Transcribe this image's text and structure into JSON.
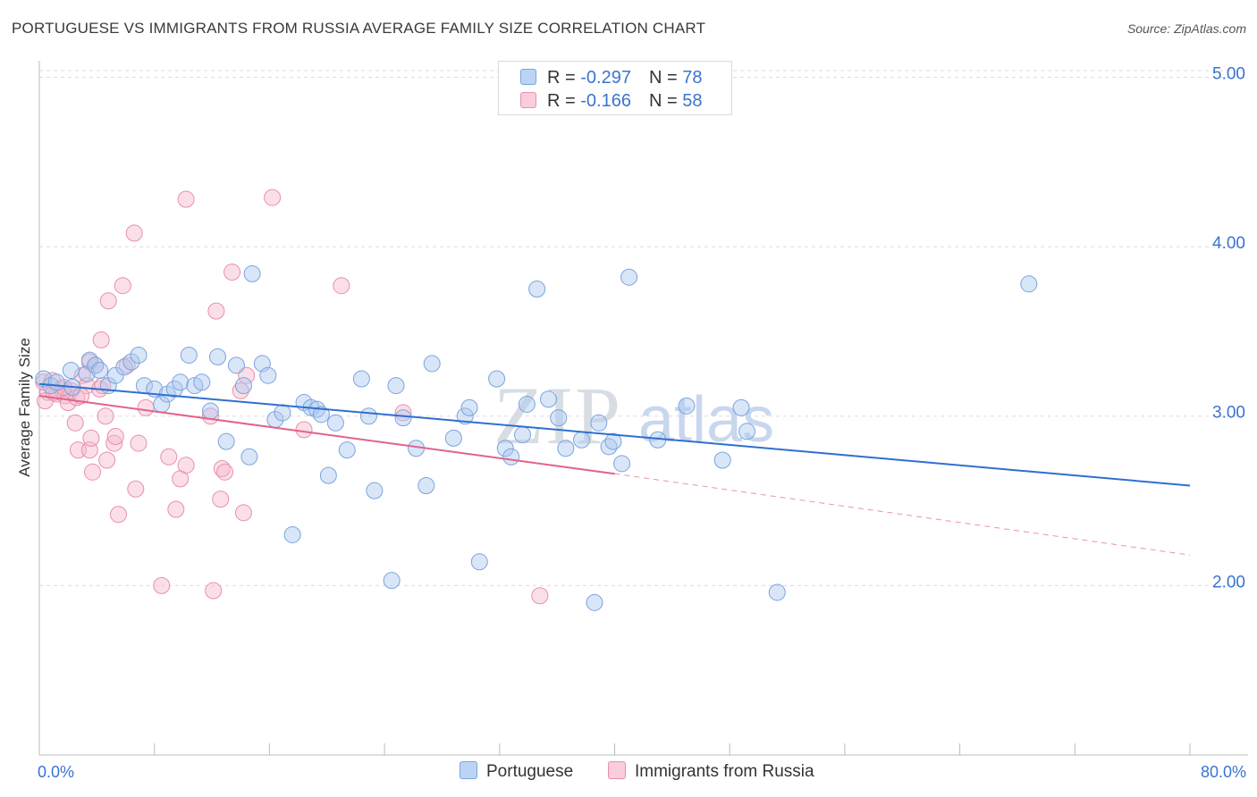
{
  "header": {
    "title": "PORTUGUESE VS IMMIGRANTS FROM RUSSIA AVERAGE FAMILY SIZE CORRELATION CHART",
    "source": "Source: ZipAtlas.com"
  },
  "watermark": {
    "part1": "ZIP",
    "part2": "atlas"
  },
  "legend_top": {
    "rows": [
      {
        "r_label": "R = ",
        "r_value": "-0.297",
        "n_label": "N = ",
        "n_value": "78"
      },
      {
        "r_label": "R = ",
        "r_value": "-0.166",
        "n_label": "N = ",
        "n_value": "58"
      }
    ]
  },
  "legend_bottom": {
    "items": [
      "Portuguese",
      "Immigrants from Russia"
    ]
  },
  "colors": {
    "portuguese_fill": "#aac8f0",
    "portuguese_stroke": "#7aa4dc",
    "portuguese_line": "#2f6fd0",
    "russia_fill": "#f6b8cc",
    "russia_stroke": "#e890ac",
    "russia_line": "#e0648c",
    "tick_label": "#3a74d0",
    "grid": "#dcdcdc"
  },
  "chart_data": {
    "type": "scatter",
    "title": "PORTUGUESE VS IMMIGRANTS FROM RUSSIA AVERAGE FAMILY SIZE CORRELATION CHART",
    "xlabel": "",
    "ylabel": "Average Family Size",
    "xlim": [
      0,
      80
    ],
    "ylim": [
      1.0,
      5.15
    ],
    "x_tick_labels": [
      "0.0%",
      "80.0%"
    ],
    "y_ticks": [
      2.0,
      3.0,
      4.0,
      5.0
    ],
    "y_tick_labels": [
      "2.00",
      "3.00",
      "4.00",
      "5.00"
    ],
    "grid": true,
    "legend_position": "bottom",
    "series": [
      {
        "name": "Portuguese",
        "r": -0.297,
        "n": 78,
        "trend": {
          "x": [
            0,
            80
          ],
          "y": [
            3.19,
            2.59
          ]
        },
        "points": [
          [
            0.3,
            3.22
          ],
          [
            0.8,
            3.18
          ],
          [
            1.2,
            3.2
          ],
          [
            2.2,
            3.27
          ],
          [
            3.3,
            3.25
          ],
          [
            3.5,
            3.33
          ],
          [
            3.9,
            3.3
          ],
          [
            4.2,
            3.27
          ],
          [
            4.8,
            3.18
          ],
          [
            5.3,
            3.24
          ],
          [
            5.9,
            3.29
          ],
          [
            6.4,
            3.32
          ],
          [
            6.9,
            3.36
          ],
          [
            7.3,
            3.18
          ],
          [
            8.0,
            3.16
          ],
          [
            8.5,
            3.07
          ],
          [
            8.9,
            3.13
          ],
          [
            9.4,
            3.16
          ],
          [
            9.8,
            3.2
          ],
          [
            10.4,
            3.36
          ],
          [
            10.8,
            3.18
          ],
          [
            11.3,
            3.2
          ],
          [
            11.9,
            3.03
          ],
          [
            12.4,
            3.35
          ],
          [
            13.0,
            2.85
          ],
          [
            13.7,
            3.3
          ],
          [
            14.2,
            3.18
          ],
          [
            14.6,
            2.76
          ],
          [
            14.8,
            3.84
          ],
          [
            15.5,
            3.31
          ],
          [
            15.9,
            3.24
          ],
          [
            16.4,
            2.98
          ],
          [
            16.9,
            3.02
          ],
          [
            17.6,
            2.3
          ],
          [
            18.4,
            3.08
          ],
          [
            18.9,
            3.05
          ],
          [
            19.3,
            3.04
          ],
          [
            19.6,
            3.01
          ],
          [
            20.1,
            2.65
          ],
          [
            20.6,
            2.96
          ],
          [
            21.4,
            2.8
          ],
          [
            22.4,
            3.22
          ],
          [
            22.9,
            3.0
          ],
          [
            23.3,
            2.56
          ],
          [
            24.5,
            2.03
          ],
          [
            24.8,
            3.18
          ],
          [
            25.3,
            2.99
          ],
          [
            26.2,
            2.81
          ],
          [
            26.9,
            2.59
          ],
          [
            27.3,
            3.31
          ],
          [
            28.8,
            2.87
          ],
          [
            29.6,
            3.0
          ],
          [
            29.9,
            3.05
          ],
          [
            30.6,
            2.14
          ],
          [
            31.8,
            3.22
          ],
          [
            32.4,
            2.81
          ],
          [
            32.8,
            2.76
          ],
          [
            33.6,
            2.89
          ],
          [
            33.9,
            3.07
          ],
          [
            34.6,
            3.75
          ],
          [
            35.4,
            3.1
          ],
          [
            36.1,
            2.99
          ],
          [
            36.6,
            2.81
          ],
          [
            37.7,
            2.86
          ],
          [
            38.6,
            1.9
          ],
          [
            38.9,
            2.96
          ],
          [
            39.6,
            2.82
          ],
          [
            39.9,
            2.85
          ],
          [
            40.5,
            2.72
          ],
          [
            41.0,
            3.82
          ],
          [
            43.0,
            2.86
          ],
          [
            45.0,
            3.06
          ],
          [
            47.5,
            2.74
          ],
          [
            48.8,
            3.05
          ],
          [
            49.2,
            2.91
          ],
          [
            51.3,
            1.96
          ],
          [
            68.8,
            3.78
          ],
          [
            2.3,
            3.17
          ]
        ]
      },
      {
        "name": "Immigrants from Russia",
        "r": -0.166,
        "n": 58,
        "trend": {
          "x": [
            0,
            40.0
          ],
          "y": [
            3.12,
            2.66
          ]
        },
        "trend_dashed": {
          "x": [
            40.0,
            80
          ],
          "y": [
            2.66,
            2.18
          ]
        },
        "points": [
          [
            0.3,
            3.2
          ],
          [
            0.6,
            3.14
          ],
          [
            0.9,
            3.21
          ],
          [
            1.2,
            3.13
          ],
          [
            1.5,
            3.16
          ],
          [
            1.8,
            3.12
          ],
          [
            2.0,
            3.08
          ],
          [
            2.2,
            3.15
          ],
          [
            2.6,
            3.11
          ],
          [
            2.5,
            2.96
          ],
          [
            2.7,
            2.8
          ],
          [
            3.0,
            3.24
          ],
          [
            3.3,
            3.18
          ],
          [
            3.5,
            3.32
          ],
          [
            3.5,
            2.8
          ],
          [
            3.6,
            2.87
          ],
          [
            3.7,
            2.67
          ],
          [
            3.9,
            3.3
          ],
          [
            4.2,
            3.16
          ],
          [
            4.3,
            3.45
          ],
          [
            4.4,
            3.18
          ],
          [
            4.6,
            3.0
          ],
          [
            4.7,
            2.74
          ],
          [
            4.8,
            3.68
          ],
          [
            5.2,
            2.84
          ],
          [
            5.3,
            2.88
          ],
          [
            5.5,
            2.42
          ],
          [
            5.8,
            3.77
          ],
          [
            6.1,
            3.3
          ],
          [
            6.6,
            4.08
          ],
          [
            6.7,
            2.57
          ],
          [
            6.9,
            2.84
          ],
          [
            7.4,
            3.05
          ],
          [
            8.5,
            2.0
          ],
          [
            9.0,
            2.76
          ],
          [
            9.5,
            2.45
          ],
          [
            9.8,
            2.63
          ],
          [
            10.2,
            4.28
          ],
          [
            10.2,
            2.71
          ],
          [
            11.9,
            3.0
          ],
          [
            12.1,
            1.97
          ],
          [
            12.3,
            3.62
          ],
          [
            12.6,
            2.51
          ],
          [
            12.7,
            2.69
          ],
          [
            12.9,
            2.67
          ],
          [
            13.4,
            3.85
          ],
          [
            14.0,
            3.15
          ],
          [
            14.2,
            2.43
          ],
          [
            14.4,
            3.24
          ],
          [
            16.2,
            4.29
          ],
          [
            18.4,
            2.92
          ],
          [
            21.0,
            3.77
          ],
          [
            25.3,
            3.02
          ],
          [
            34.8,
            1.94
          ],
          [
            0.4,
            3.09
          ],
          [
            1.0,
            3.14
          ],
          [
            1.7,
            3.17
          ],
          [
            2.9,
            3.12
          ]
        ]
      }
    ]
  }
}
